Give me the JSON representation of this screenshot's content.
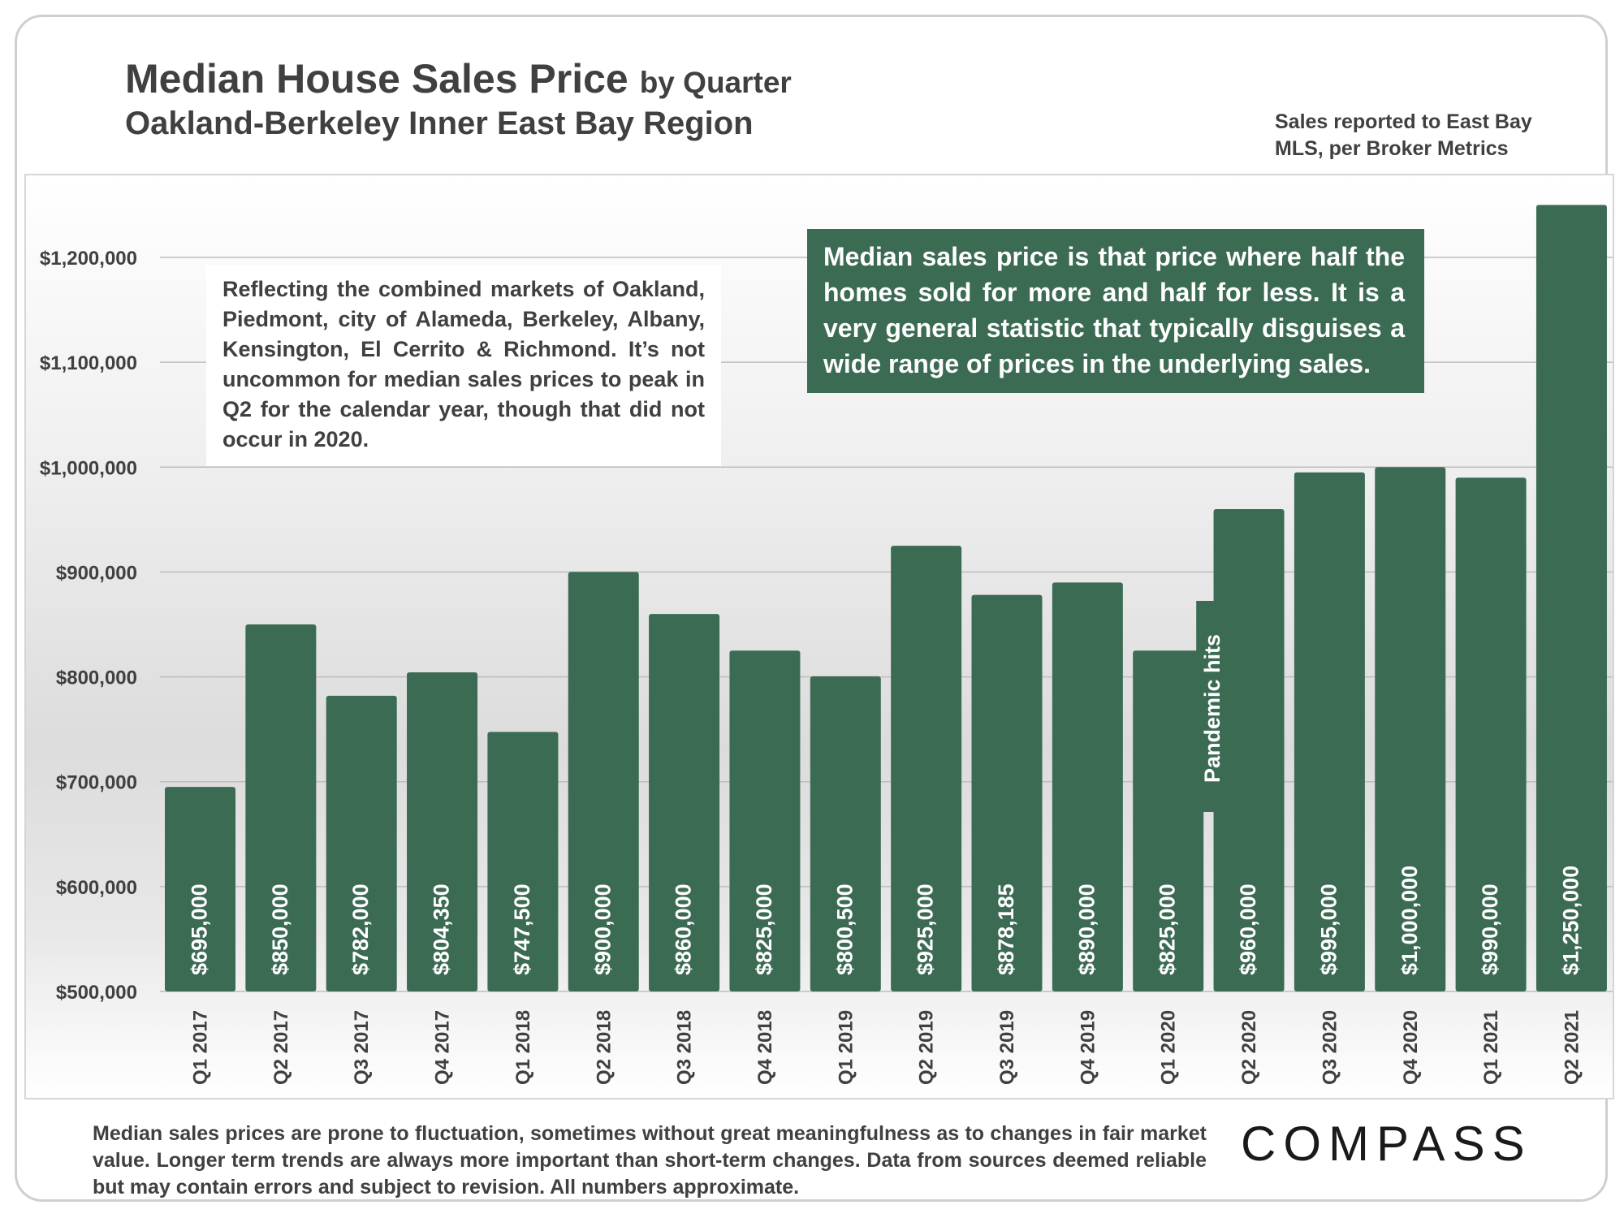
{
  "header": {
    "title_main": "Median House Sales Price",
    "title_by": "by Quarter",
    "subtitle": "Oakland-Berkeley Inner East Bay Region",
    "source_note": "Sales reported to East Bay MLS, per Broker Metrics"
  },
  "notes": {
    "left": "Reflecting the combined markets of Oakland, Piedmont, city of Alameda, Berkeley, Albany, Kensington, El Cerrito & Richmond. It’s not uncommon for median sales prices to peak in Q2 for the calendar year, though that did not occur in 2020.",
    "right": "Median sales price is that price where half the homes sold for more and half for less. It is a very general statistic that typically disguises a wide range of prices in the underlying sales."
  },
  "footer": {
    "disclaimer": "Median sales prices are prone to fluctuation, sometimes without great meaningfulness as to changes in fair market value. Longer term trends are always more important than short-term changes. Data from sources deemed reliable but may contain errors and subject to revision. All numbers approximate.",
    "logo": "COMPASS"
  },
  "colors": {
    "bar": "#3c6b54",
    "bar_label": "#ffffff",
    "axis_text": "#404040",
    "grid": "#bdbdbd"
  },
  "chart_data": {
    "type": "bar",
    "title": "Median House Sales Price by Quarter",
    "subtitle": "Oakland-Berkeley Inner East Bay Region",
    "categories": [
      "Q1 2017",
      "Q2 2017",
      "Q3 2017",
      "Q4 2017",
      "Q1 2018",
      "Q2 2018",
      "Q3 2018",
      "Q4 2018",
      "Q1 2019",
      "Q2 2019",
      "Q3 2019",
      "Q4 2019",
      "Q1 2020",
      "Q2 2020",
      "Q3 2020",
      "Q4 2020",
      "Q1 2021",
      "Q2 2021"
    ],
    "values": [
      695000,
      850000,
      782000,
      804350,
      747500,
      900000,
      860000,
      825000,
      800500,
      925000,
      878185,
      890000,
      825000,
      960000,
      995000,
      1000000,
      990000,
      1250000
    ],
    "data_labels": [
      "$695,000",
      "$850,000",
      "$782,000",
      "$804,350",
      "$747,500",
      "$900,000",
      "$860,000",
      "$825,000",
      "$800,500",
      "$925,000",
      "$878,185",
      "$890,000",
      "$825,000",
      "$960,000",
      "$995,000",
      "$1,000,000",
      "$990,000",
      "$1,250,000"
    ],
    "yticks": [
      500000,
      600000,
      700000,
      800000,
      900000,
      1000000,
      1100000,
      1200000
    ],
    "ytick_labels": [
      "$500,000",
      "$600,000",
      "$700,000",
      "$800,000",
      "$900,000",
      "$1,000,000",
      "$1,100,000",
      "$1,200,000"
    ],
    "ylim": [
      500000,
      1280000
    ],
    "grid": true,
    "annotation": {
      "text": "Pandemic hits",
      "category": "Q1 2020"
    }
  }
}
